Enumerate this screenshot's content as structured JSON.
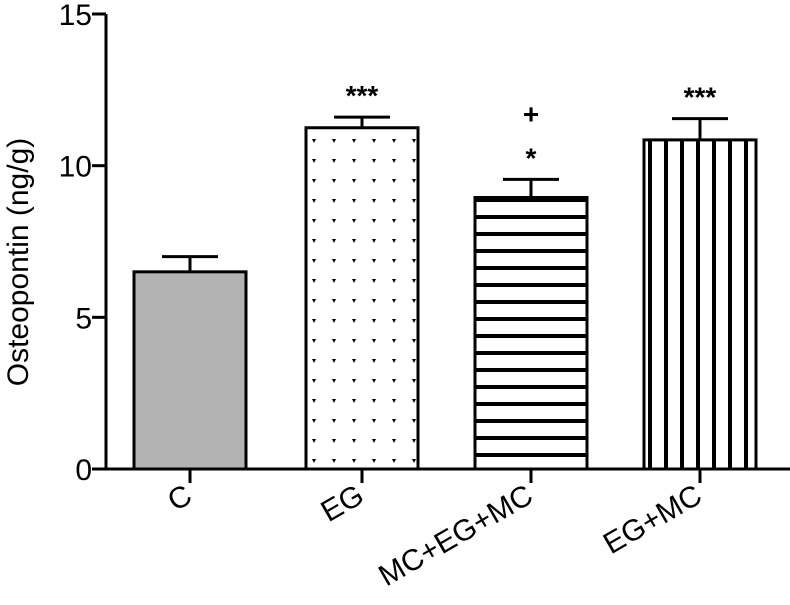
{
  "chart_data": {
    "type": "bar",
    "title": "",
    "xlabel": "",
    "ylabel": "Osteopontin (ng/g)",
    "ylim": [
      0,
      15
    ],
    "yticks": [
      0,
      5,
      10,
      15
    ],
    "categories": [
      "C",
      "EG",
      "MC+EG+MC",
      "EG+MC"
    ],
    "values": [
      6.5,
      11.25,
      8.95,
      10.85
    ],
    "errors": [
      0.5,
      0.35,
      0.6,
      0.7
    ],
    "fills": [
      "solid-gray",
      "dot-pattern",
      "horizontal-stripes",
      "vertical-stripes"
    ],
    "annotations": [
      [],
      [
        "***"
      ],
      [
        "+",
        "*"
      ],
      [
        "***"
      ]
    ],
    "colors": {
      "gray": "#b3b3b3",
      "ink": "#000000",
      "paper": "#ffffff"
    },
    "grid": false,
    "legend": "none"
  }
}
